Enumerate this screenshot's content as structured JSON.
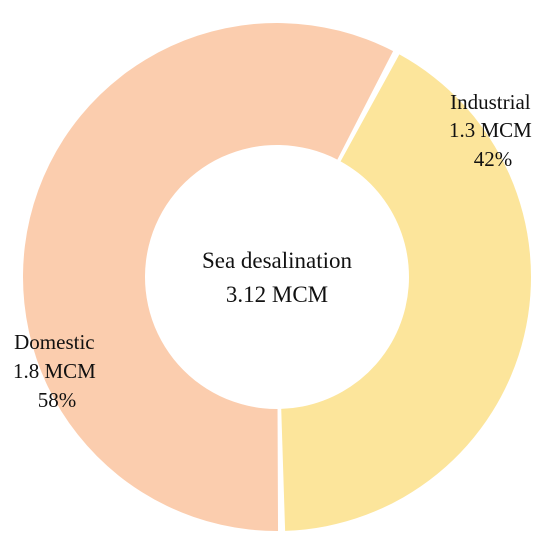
{
  "chart_data": {
    "type": "pie",
    "variant": "donut",
    "center_text": [
      "Sea desalination",
      "3.12 MCM"
    ],
    "slices": [
      {
        "category": "Industrial",
        "value": 1.3,
        "unit": "MCM",
        "percent": 42,
        "color": "#FCE59B",
        "label_lines": [
          "Industrial",
          "1.3 MCM",
          "42%"
        ]
      },
      {
        "category": "Domestic",
        "value": 1.8,
        "unit": "MCM",
        "percent": 58,
        "color": "#FBCDAE",
        "label_lines": [
          "Domestic",
          "1.8 MCM",
          "58%"
        ]
      }
    ],
    "legend": false,
    "grid": false
  },
  "colors": {
    "background": "#FFFFFF",
    "separator": "#FFFFFF",
    "text": "#111111"
  }
}
